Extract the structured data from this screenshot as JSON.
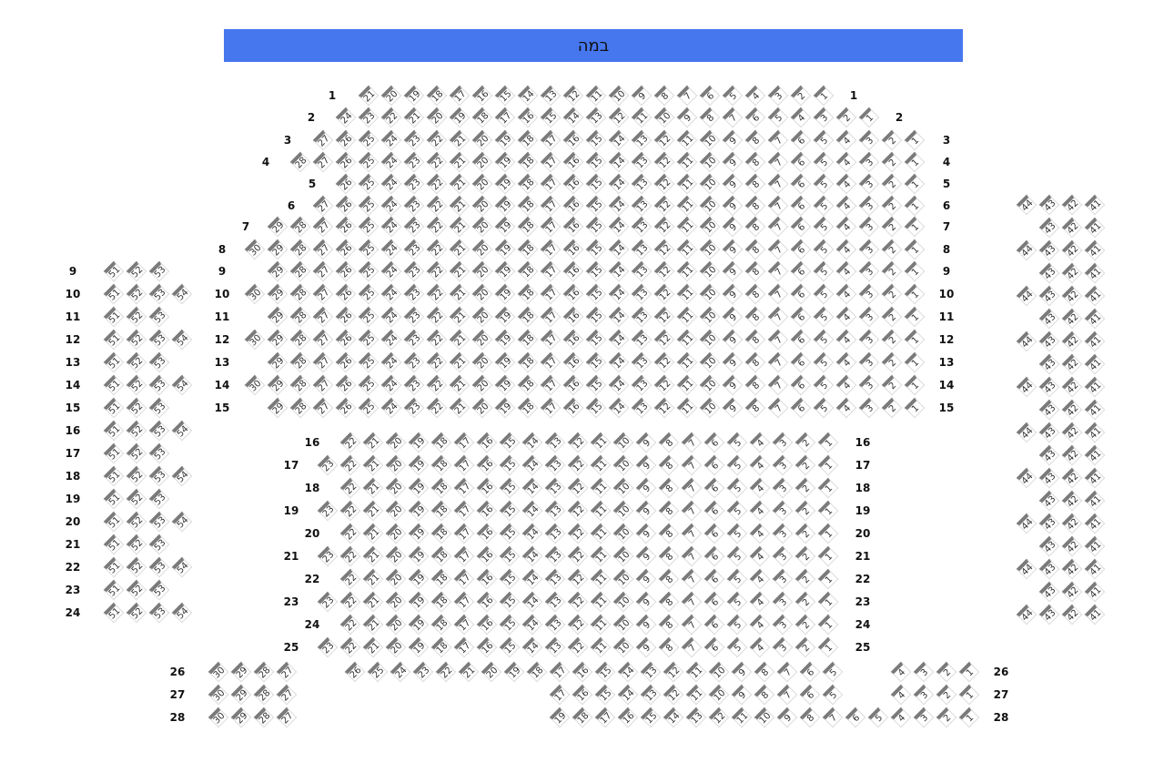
{
  "stage": {
    "label": "במה"
  },
  "colors": {
    "stage": "#4677ee",
    "seat_bar": "#7a7a7a",
    "seat_border": "#dcdcdc"
  },
  "sections": {
    "main": {
      "rows": [
        {
          "label": "1",
          "segments": [
            {
              "from": 21,
              "to": 1
            }
          ]
        },
        {
          "label": "2",
          "segments": [
            {
              "from": 24,
              "to": 1
            }
          ]
        },
        {
          "label": "3",
          "segments": [
            {
              "from": 27,
              "to": 1
            }
          ]
        },
        {
          "label": "4",
          "segments": [
            {
              "from": 28,
              "to": 1
            }
          ]
        },
        {
          "label": "5",
          "segments": [
            {
              "from": 26,
              "to": 1
            }
          ]
        },
        {
          "label": "6",
          "segments": [
            {
              "from": 27,
              "to": 1
            }
          ]
        },
        {
          "label": "7",
          "segments": [
            {
              "from": 29,
              "to": 1
            }
          ]
        },
        {
          "label": "8",
          "segments": [
            {
              "from": 30,
              "to": 1
            }
          ]
        },
        {
          "label": "9",
          "segments": [
            {
              "from": 29,
              "to": 1
            }
          ]
        },
        {
          "label": "10",
          "segments": [
            {
              "from": 30,
              "to": 1
            }
          ]
        },
        {
          "label": "11",
          "segments": [
            {
              "from": 29,
              "to": 1
            }
          ]
        },
        {
          "label": "12",
          "segments": [
            {
              "from": 30,
              "to": 1
            }
          ]
        },
        {
          "label": "13",
          "segments": [
            {
              "from": 29,
              "to": 1
            }
          ]
        },
        {
          "label": "14",
          "segments": [
            {
              "from": 30,
              "to": 1
            }
          ]
        },
        {
          "label": "15",
          "segments": [
            {
              "from": 29,
              "to": 1
            }
          ]
        },
        {
          "label": "16",
          "segments": [
            {
              "from": 22,
              "to": 1
            }
          ]
        },
        {
          "label": "17",
          "segments": [
            {
              "from": 23,
              "to": 1
            }
          ]
        },
        {
          "label": "18",
          "segments": [
            {
              "from": 22,
              "to": 1
            }
          ]
        },
        {
          "label": "19",
          "segments": [
            {
              "from": 23,
              "to": 1
            }
          ]
        },
        {
          "label": "20",
          "segments": [
            {
              "from": 22,
              "to": 1
            }
          ]
        },
        {
          "label": "21",
          "segments": [
            {
              "from": 23,
              "to": 1
            }
          ]
        },
        {
          "label": "22",
          "segments": [
            {
              "from": 22,
              "to": 1
            }
          ]
        },
        {
          "label": "23",
          "segments": [
            {
              "from": 23,
              "to": 1
            }
          ]
        },
        {
          "label": "24",
          "segments": [
            {
              "from": 22,
              "to": 1
            }
          ]
        },
        {
          "label": "25",
          "segments": [
            {
              "from": 23,
              "to": 1
            }
          ]
        },
        {
          "label": "26",
          "segments": [
            {
              "from": 26,
              "to": 5
            },
            {
              "from": 4,
              "to": 1
            }
          ]
        },
        {
          "label": "27",
          "segments": [
            {
              "from": 17,
              "to": 5
            },
            {
              "from": 4,
              "to": 1
            }
          ]
        },
        {
          "label": "28",
          "segments": [
            {
              "from": 19,
              "to": 1
            }
          ]
        }
      ]
    },
    "left_wing": {
      "rows": [
        {
          "label": "9",
          "segments": [
            {
              "from": 51,
              "to": 53
            }
          ]
        },
        {
          "label": "10",
          "segments": [
            {
              "from": 51,
              "to": 54
            }
          ]
        },
        {
          "label": "11",
          "segments": [
            {
              "from": 51,
              "to": 53
            }
          ]
        },
        {
          "label": "12",
          "segments": [
            {
              "from": 51,
              "to": 54
            }
          ]
        },
        {
          "label": "13",
          "segments": [
            {
              "from": 51,
              "to": 53
            }
          ]
        },
        {
          "label": "14",
          "segments": [
            {
              "from": 51,
              "to": 54
            }
          ]
        },
        {
          "label": "15",
          "segments": [
            {
              "from": 51,
              "to": 53
            }
          ]
        },
        {
          "label": "16",
          "segments": [
            {
              "from": 51,
              "to": 54
            }
          ]
        },
        {
          "label": "17",
          "segments": [
            {
              "from": 51,
              "to": 53
            }
          ]
        },
        {
          "label": "18",
          "segments": [
            {
              "from": 51,
              "to": 54
            }
          ]
        },
        {
          "label": "19",
          "segments": [
            {
              "from": 51,
              "to": 53
            }
          ]
        },
        {
          "label": "20",
          "segments": [
            {
              "from": 51,
              "to": 54
            }
          ]
        },
        {
          "label": "21",
          "segments": [
            {
              "from": 51,
              "to": 53
            }
          ]
        },
        {
          "label": "22",
          "segments": [
            {
              "from": 51,
              "to": 54
            }
          ]
        },
        {
          "label": "23",
          "segments": [
            {
              "from": 51,
              "to": 53
            }
          ]
        },
        {
          "label": "24",
          "segments": [
            {
              "from": 51,
              "to": 54
            }
          ]
        }
      ]
    },
    "right_wing": {
      "rows": [
        {
          "segments": [
            {
              "from": 44,
              "to": 41
            }
          ]
        },
        {
          "segments": [
            {
              "from": 43,
              "to": 41
            }
          ]
        },
        {
          "segments": [
            {
              "from": 44,
              "to": 41
            }
          ]
        },
        {
          "segments": [
            {
              "from": 43,
              "to": 41
            }
          ]
        },
        {
          "segments": [
            {
              "from": 44,
              "to": 41
            }
          ]
        },
        {
          "segments": [
            {
              "from": 43,
              "to": 41
            }
          ]
        },
        {
          "segments": [
            {
              "from": 44,
              "to": 41
            }
          ]
        },
        {
          "segments": [
            {
              "from": 43,
              "to": 41
            }
          ]
        },
        {
          "segments": [
            {
              "from": 44,
              "to": 41
            }
          ]
        },
        {
          "segments": [
            {
              "from": 43,
              "to": 41
            }
          ]
        },
        {
          "segments": [
            {
              "from": 44,
              "to": 41
            }
          ]
        },
        {
          "segments": [
            {
              "from": 43,
              "to": 41
            }
          ]
        },
        {
          "segments": [
            {
              "from": 44,
              "to": 41
            }
          ]
        },
        {
          "segments": [
            {
              "from": 43,
              "to": 41
            }
          ]
        },
        {
          "segments": [
            {
              "from": 44,
              "to": 41
            }
          ]
        },
        {
          "segments": [
            {
              "from": 43,
              "to": 41
            }
          ]
        },
        {
          "segments": [
            {
              "from": 44,
              "to": 41
            }
          ]
        },
        {
          "segments": [
            {
              "from": 43,
              "to": 41
            }
          ]
        },
        {
          "segments": [
            {
              "from": 44,
              "to": 41
            }
          ]
        }
      ]
    },
    "back_left": {
      "rows": [
        {
          "segments": [
            {
              "from": 30,
              "to": 27
            }
          ]
        },
        {
          "segments": [
            {
              "from": 30,
              "to": 27
            }
          ]
        },
        {
          "segments": [
            {
              "from": 30,
              "to": 27
            }
          ]
        }
      ]
    }
  }
}
